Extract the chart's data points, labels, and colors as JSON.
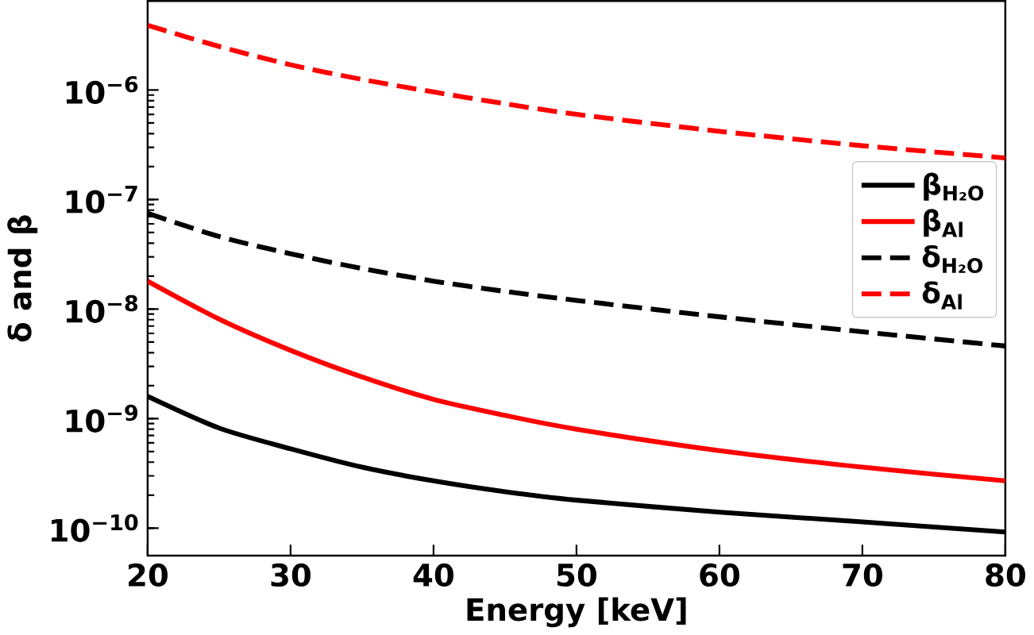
{
  "chart_data": {
    "type": "line",
    "xlabel": "Energy [keV]",
    "ylabel": "δ and β",
    "x": [
      20,
      25,
      30,
      35,
      40,
      45,
      50,
      60,
      70,
      80
    ],
    "series": [
      {
        "name": "β$_{H₂O}$",
        "color": "#000000",
        "line_style": "solid",
        "values": [
          1.6e-09,
          8.2e-10,
          5.3e-10,
          3.6e-10,
          2.7e-10,
          2.15e-10,
          1.8e-10,
          1.4e-10,
          1.14e-10,
          9.2e-11
        ]
      },
      {
        "name": "β$_{Al}$",
        "color": "#ff0000",
        "line_style": "solid",
        "values": [
          1.8e-08,
          8.1e-09,
          4.2e-09,
          2.4e-09,
          1.5e-09,
          1.07e-09,
          8e-10,
          5.1e-10,
          3.6e-10,
          2.7e-10
        ]
      },
      {
        "name": "δ$_{H₂O}$",
        "color": "#000000",
        "line_style": "dashed",
        "values": [
          7.5e-08,
          4.6e-08,
          3.2e-08,
          2.35e-08,
          1.8e-08,
          1.45e-08,
          1.2e-08,
          8.5e-09,
          6.2e-09,
          4.6e-09
        ]
      },
      {
        "name": "δ$_{Al}$",
        "color": "#ff0000",
        "line_style": "dashed",
        "values": [
          3.9e-06,
          2.5e-06,
          1.7e-06,
          1.25e-06,
          9.6e-07,
          7.5e-07,
          6e-07,
          4.2e-07,
          3.1e-07,
          2.4e-07
        ]
      }
    ],
    "xlim": [
      20,
      80
    ],
    "xticks": [
      20,
      30,
      40,
      50,
      60,
      70,
      80
    ],
    "ylim": [
      5.6e-11,
      6.5e-06
    ],
    "yticks": [
      {
        "value": 1e-10,
        "label": "10$^{−10}$"
      },
      {
        "value": 1e-09,
        "label": "10$^{−9}$"
      },
      {
        "value": 1e-08,
        "label": "10$^{−8}$"
      },
      {
        "value": 1e-07,
        "label": "10$^{−7}$"
      },
      {
        "value": 1e-06,
        "label": "10$^{−6}$"
      }
    ],
    "log": "y",
    "grid": false,
    "legend": "right"
  }
}
